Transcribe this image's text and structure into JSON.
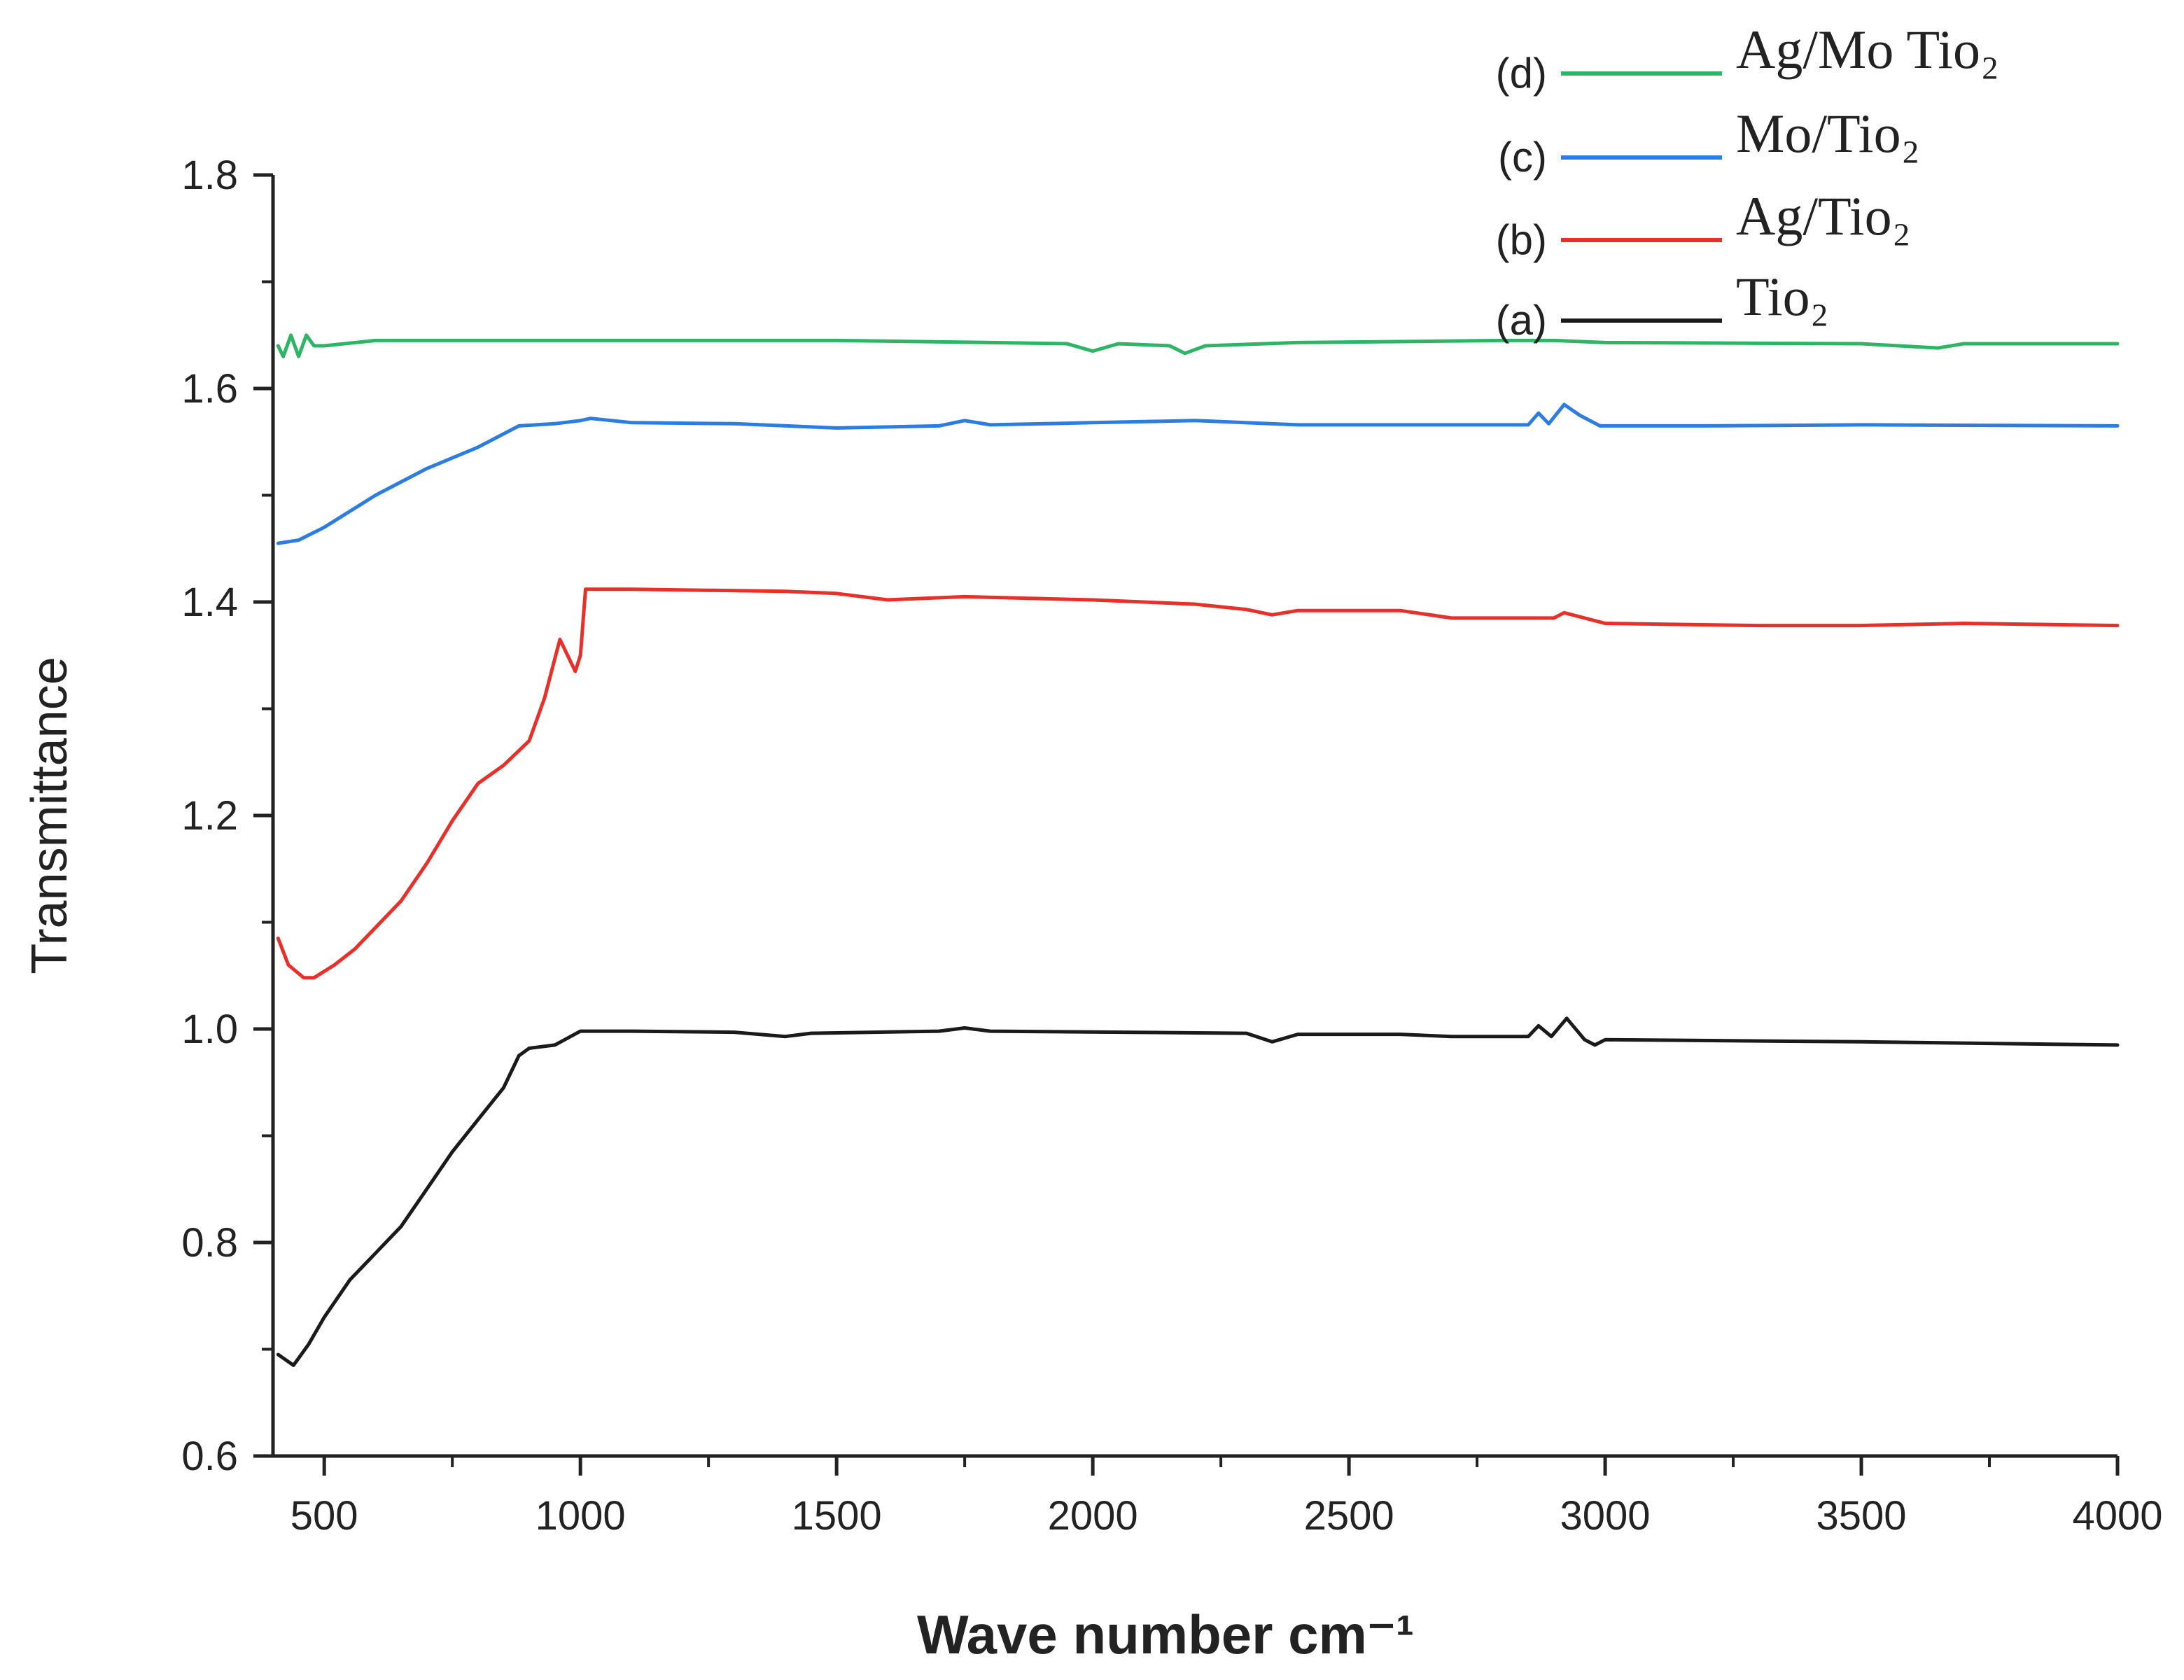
{
  "chart_data": {
    "type": "line",
    "title": "",
    "xlabel": "Wave number cm⁻¹",
    "ylabel": "Transmittance",
    "xlim": [
      400,
      4000
    ],
    "ylim": [
      0.6,
      1.8
    ],
    "xticks": [
      500,
      1000,
      1500,
      2000,
      2500,
      3000,
      3500,
      4000
    ],
    "yticks": [
      0.6,
      0.8,
      1.0,
      1.2,
      1.4,
      1.6,
      1.8
    ],
    "ytick_labels": [
      "0.6",
      "0.8",
      "1.0",
      "1.2",
      "1.4",
      "1.6",
      "1.8"
    ],
    "legend_position": "top-right",
    "series": [
      {
        "id": "d",
        "letter": "(d)",
        "name": "Ag/Mo Tio₂",
        "color": "#2db565",
        "points": [
          [
            410,
            1.64
          ],
          [
            420,
            1.63
          ],
          [
            435,
            1.65
          ],
          [
            450,
            1.63
          ],
          [
            465,
            1.65
          ],
          [
            480,
            1.64
          ],
          [
            500,
            1.64
          ],
          [
            600,
            1.645
          ],
          [
            700,
            1.645
          ],
          [
            800,
            1.645
          ],
          [
            900,
            1.645
          ],
          [
            1000,
            1.645
          ],
          [
            1200,
            1.645
          ],
          [
            1500,
            1.645
          ],
          [
            1800,
            1.643
          ],
          [
            1950,
            1.642
          ],
          [
            2000,
            1.635
          ],
          [
            2050,
            1.642
          ],
          [
            2150,
            1.64
          ],
          [
            2180,
            1.633
          ],
          [
            2220,
            1.64
          ],
          [
            2400,
            1.643
          ],
          [
            2800,
            1.645
          ],
          [
            2900,
            1.645
          ],
          [
            3000,
            1.643
          ],
          [
            3500,
            1.642
          ],
          [
            3650,
            1.638
          ],
          [
            3700,
            1.642
          ],
          [
            4000,
            1.642
          ]
        ]
      },
      {
        "id": "c",
        "letter": "(c)",
        "name": "Mo/Tio₂",
        "color": "#2d7de0",
        "points": [
          [
            410,
            1.455
          ],
          [
            450,
            1.458
          ],
          [
            500,
            1.47
          ],
          [
            600,
            1.5
          ],
          [
            700,
            1.525
          ],
          [
            800,
            1.545
          ],
          [
            880,
            1.565
          ],
          [
            950,
            1.567
          ],
          [
            1000,
            1.57
          ],
          [
            1020,
            1.572
          ],
          [
            1100,
            1.568
          ],
          [
            1300,
            1.567
          ],
          [
            1500,
            1.563
          ],
          [
            1700,
            1.565
          ],
          [
            1750,
            1.57
          ],
          [
            1800,
            1.566
          ],
          [
            2000,
            1.568
          ],
          [
            2200,
            1.57
          ],
          [
            2400,
            1.566
          ],
          [
            2600,
            1.566
          ],
          [
            2850,
            1.566
          ],
          [
            2870,
            1.577
          ],
          [
            2890,
            1.567
          ],
          [
            2920,
            1.585
          ],
          [
            2950,
            1.575
          ],
          [
            2990,
            1.565
          ],
          [
            3200,
            1.565
          ],
          [
            3500,
            1.566
          ],
          [
            4000,
            1.565
          ]
        ]
      },
      {
        "id": "b",
        "letter": "(b)",
        "name": "Ag/Tio₂",
        "color": "#e8302a",
        "points": [
          [
            410,
            1.085
          ],
          [
            430,
            1.06
          ],
          [
            460,
            1.048
          ],
          [
            480,
            1.048
          ],
          [
            520,
            1.06
          ],
          [
            560,
            1.075
          ],
          [
            600,
            1.095
          ],
          [
            650,
            1.12
          ],
          [
            700,
            1.155
          ],
          [
            750,
            1.195
          ],
          [
            800,
            1.23
          ],
          [
            850,
            1.247
          ],
          [
            900,
            1.27
          ],
          [
            930,
            1.31
          ],
          [
            960,
            1.365
          ],
          [
            990,
            1.335
          ],
          [
            1000,
            1.35
          ],
          [
            1010,
            1.412
          ],
          [
            1100,
            1.412
          ],
          [
            1400,
            1.41
          ],
          [
            1500,
            1.408
          ],
          [
            1600,
            1.402
          ],
          [
            1750,
            1.405
          ],
          [
            2000,
            1.402
          ],
          [
            2200,
            1.398
          ],
          [
            2300,
            1.393
          ],
          [
            2350,
            1.388
          ],
          [
            2400,
            1.392
          ],
          [
            2600,
            1.392
          ],
          [
            2700,
            1.385
          ],
          [
            2900,
            1.385
          ],
          [
            2920,
            1.39
          ],
          [
            3000,
            1.38
          ],
          [
            3300,
            1.378
          ],
          [
            3500,
            1.378
          ],
          [
            3700,
            1.38
          ],
          [
            4000,
            1.378
          ]
        ]
      },
      {
        "id": "a",
        "letter": "(a)",
        "name": "Tio₂",
        "color": "#1a1a1a",
        "points": [
          [
            410,
            0.695
          ],
          [
            440,
            0.685
          ],
          [
            470,
            0.705
          ],
          [
            500,
            0.73
          ],
          [
            550,
            0.765
          ],
          [
            600,
            0.79
          ],
          [
            650,
            0.815
          ],
          [
            700,
            0.85
          ],
          [
            750,
            0.885
          ],
          [
            800,
            0.915
          ],
          [
            850,
            0.945
          ],
          [
            880,
            0.975
          ],
          [
            900,
            0.982
          ],
          [
            950,
            0.985
          ],
          [
            1000,
            0.998
          ],
          [
            1100,
            0.998
          ],
          [
            1300,
            0.997
          ],
          [
            1400,
            0.993
          ],
          [
            1450,
            0.996
          ],
          [
            1700,
            0.998
          ],
          [
            1750,
            1.001
          ],
          [
            1800,
            0.998
          ],
          [
            2300,
            0.996
          ],
          [
            2350,
            0.988
          ],
          [
            2400,
            0.995
          ],
          [
            2600,
            0.995
          ],
          [
            2700,
            0.993
          ],
          [
            2850,
            0.993
          ],
          [
            2870,
            1.003
          ],
          [
            2895,
            0.993
          ],
          [
            2925,
            1.01
          ],
          [
            2960,
            0.99
          ],
          [
            2980,
            0.985
          ],
          [
            3000,
            0.99
          ],
          [
            3500,
            0.988
          ],
          [
            4000,
            0.985
          ]
        ]
      }
    ]
  }
}
